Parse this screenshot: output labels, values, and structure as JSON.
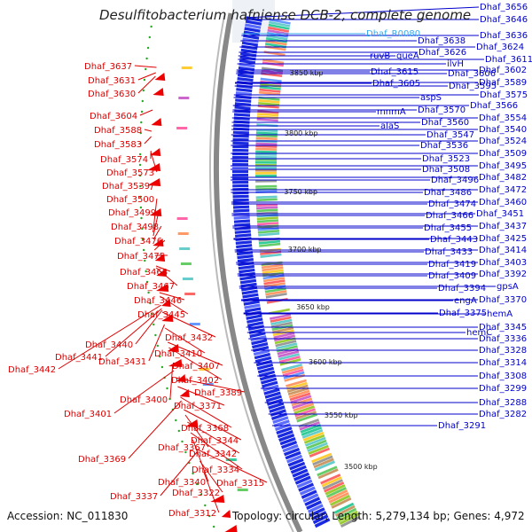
{
  "title": "Desulfitobacterium hafniense DCB-2, complete genome",
  "footer": {
    "accession": "Accession: NC_011830",
    "topology": "Topology: circular; Length: 5,279,134 bp; Genes: 4,972"
  },
  "colors": {
    "forward_label": "#0000cc",
    "reverse_label": "#dd0000",
    "rna_label": "#33aaee",
    "backbone": "#888888",
    "forward_genes": "#1a2ae0",
    "reverse_arrows": "#ee0000"
  },
  "kbp_ticks": [
    "3850 kbp",
    "3800 kbp",
    "3750 kbp",
    "3700 kbp",
    "3650 kbp",
    "3600 kbp",
    "3550 kbp",
    "3500 kbp"
  ],
  "right_labels": [
    {
      "text": "Dhaf_3656",
      "kind": "gene"
    },
    {
      "text": "Dhaf_3646",
      "kind": "gene"
    },
    {
      "text": "Dhaf_R0080",
      "kind": "rna"
    },
    {
      "text": "Dhaf_3636",
      "kind": "gene"
    },
    {
      "text": "Dhaf_3638",
      "kind": "gene"
    },
    {
      "text": "Dhaf_3624",
      "kind": "gene"
    },
    {
      "text": "Dhaf_3626",
      "kind": "gene"
    },
    {
      "text": "ruvB",
      "kind": "gene"
    },
    {
      "text": "queA",
      "kind": "gene"
    },
    {
      "text": "Dhaf_3611",
      "kind": "gene"
    },
    {
      "text": "ilvH",
      "kind": "gene"
    },
    {
      "text": "Dhaf_3602",
      "kind": "gene"
    },
    {
      "text": "Dhaf_3615",
      "kind": "gene"
    },
    {
      "text": "Dhaf_3606",
      "kind": "gene"
    },
    {
      "text": "Dhaf_3589",
      "kind": "gene"
    },
    {
      "text": "Dhaf_3605",
      "kind": "gene"
    },
    {
      "text": "Dhaf_3595",
      "kind": "gene"
    },
    {
      "text": "Dhaf_3575",
      "kind": "gene"
    },
    {
      "text": "aspS",
      "kind": "gene"
    },
    {
      "text": "Dhaf_3566",
      "kind": "gene"
    },
    {
      "text": "mnmA",
      "kind": "gene"
    },
    {
      "text": "Dhaf_3570",
      "kind": "gene"
    },
    {
      "text": "Dhaf_3554",
      "kind": "gene"
    },
    {
      "text": "Dhaf_3560",
      "kind": "gene"
    },
    {
      "text": "alaS",
      "kind": "gene"
    },
    {
      "text": "Dhaf_3540",
      "kind": "gene"
    },
    {
      "text": "Dhaf_3547",
      "kind": "gene"
    },
    {
      "text": "Dhaf_3524",
      "kind": "gene"
    },
    {
      "text": "Dhaf_3536",
      "kind": "gene"
    },
    {
      "text": "Dhaf_3509",
      "kind": "gene"
    },
    {
      "text": "Dhaf_3523",
      "kind": "gene"
    },
    {
      "text": "Dhaf_3495",
      "kind": "gene"
    },
    {
      "text": "Dhaf_3508",
      "kind": "gene"
    },
    {
      "text": "Dhaf_3482",
      "kind": "gene"
    },
    {
      "text": "Dhaf_3496",
      "kind": "gene"
    },
    {
      "text": "Dhaf_3472",
      "kind": "gene"
    },
    {
      "text": "Dhaf_3486",
      "kind": "gene"
    },
    {
      "text": "Dhaf_3460",
      "kind": "gene"
    },
    {
      "text": "Dhaf_3474",
      "kind": "gene"
    },
    {
      "text": "Dhaf_3451",
      "kind": "gene"
    },
    {
      "text": "Dhaf_3466",
      "kind": "gene"
    },
    {
      "text": "Dhaf_3437",
      "kind": "gene"
    },
    {
      "text": "Dhaf_3455",
      "kind": "gene"
    },
    {
      "text": "Dhaf_3425",
      "kind": "gene"
    },
    {
      "text": "Dhaf_3443",
      "kind": "gene"
    },
    {
      "text": "Dhaf_3414",
      "kind": "gene"
    },
    {
      "text": "Dhaf_3433",
      "kind": "gene"
    },
    {
      "text": "Dhaf_3403",
      "kind": "gene"
    },
    {
      "text": "Dhaf_3419",
      "kind": "gene"
    },
    {
      "text": "Dhaf_3392",
      "kind": "gene"
    },
    {
      "text": "Dhaf_3409",
      "kind": "gene"
    },
    {
      "text": "gpsA",
      "kind": "gene"
    },
    {
      "text": "Dhaf_3394",
      "kind": "gene"
    },
    {
      "text": "Dhaf_3370",
      "kind": "gene"
    },
    {
      "text": "engA",
      "kind": "gene"
    },
    {
      "text": "hemA",
      "kind": "gene"
    },
    {
      "text": "Dhaf_3375",
      "kind": "gene"
    },
    {
      "text": "Dhaf_3345",
      "kind": "gene"
    },
    {
      "text": "hemC",
      "kind": "gene"
    },
    {
      "text": "Dhaf_3336",
      "kind": "gene"
    },
    {
      "text": "Dhaf_3328",
      "kind": "gene"
    },
    {
      "text": "Dhaf_3314",
      "kind": "gene"
    },
    {
      "text": "Dhaf_3308",
      "kind": "gene"
    },
    {
      "text": "Dhaf_3299",
      "kind": "gene"
    },
    {
      "text": "Dhaf_3288",
      "kind": "gene"
    },
    {
      "text": "Dhaf_3282",
      "kind": "gene"
    },
    {
      "text": "Dhaf_3291",
      "kind": "gene"
    }
  ],
  "left_labels": [
    "Dhaf_3637",
    "Dhaf_3631",
    "Dhaf_3630",
    "Dhaf_3604",
    "Dhaf_3588",
    "Dhaf_3583",
    "Dhaf_3574",
    "Dhaf_3573",
    "Dhaf_3539",
    "Dhaf_3500",
    "Dhaf_3499",
    "Dhaf_3498",
    "Dhaf_3476",
    "Dhaf_3475",
    "Dhaf_3468",
    "Dhaf_3467",
    "Dhaf_3446",
    "Dhaf_3445",
    "Dhaf_3440",
    "Dhaf_3432",
    "Dhaf_3441",
    "Dhaf_3410",
    "Dhaf_3431",
    "Dhaf_3442",
    "Dhaf_3407",
    "Dhaf_3402",
    "Dhaf_3400",
    "Dhaf_3389",
    "Dhaf_3371",
    "Dhaf_3401",
    "Dhaf_3368",
    "Dhaf_3344",
    "Dhaf_3367",
    "Dhaf_3342",
    "Dhaf_3369",
    "Dhaf_3334",
    "Dhaf_3340",
    "Dhaf_3315",
    "Dhaf_3337",
    "Dhaf_3322",
    "Dhaf_3312"
  ]
}
